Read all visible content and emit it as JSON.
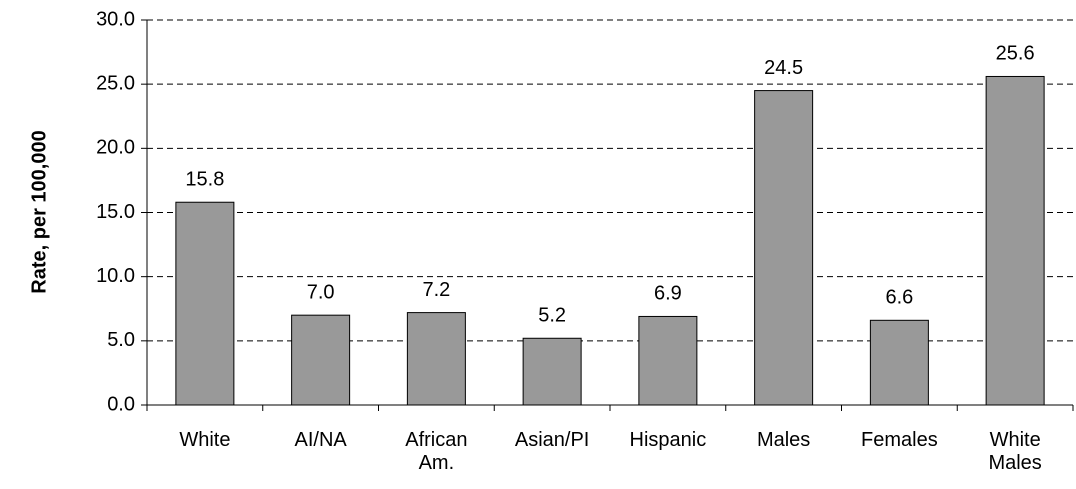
{
  "chart_data": {
    "type": "bar",
    "y_label": "Rate, per 100,000",
    "categories": [
      "White",
      "AI/NA",
      "African Am.",
      "Asian/PI",
      "Hispanic",
      "Males",
      "Females",
      "White Males"
    ],
    "values": [
      15.8,
      7.0,
      7.2,
      5.2,
      6.9,
      24.5,
      6.6,
      25.6
    ],
    "value_labels": [
      "15.8",
      "7.0",
      "7.2",
      "5.2",
      "6.9",
      "24.5",
      "6.6",
      "25.6"
    ],
    "color": "#999999",
    "ylim": [
      0,
      30
    ],
    "yticks": [
      {
        "value": 0,
        "label": "0.0"
      },
      {
        "value": 5,
        "label": "5.0"
      },
      {
        "value": 10,
        "label": "10.0"
      },
      {
        "value": 15,
        "label": "15.0"
      },
      {
        "value": 20,
        "label": "20.0"
      },
      {
        "value": 25,
        "label": "25.0"
      },
      {
        "value": 30,
        "label": "30.0"
      }
    ],
    "grid": true
  }
}
